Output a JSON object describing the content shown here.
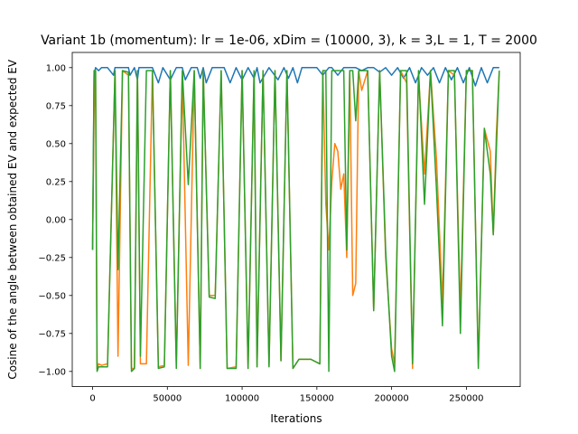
{
  "chart_data": {
    "type": "line",
    "title": "Variant 1b (momentum): lr = 1e-06, xDim = (10000, 3), k = 3,L = 1, T = 2000",
    "xlabel": "Iterations",
    "ylabel": "Cosine of the angle between obtained EV and expected EV",
    "xlim": [
      -13600,
      286000
    ],
    "ylim": [
      -1.1,
      1.1
    ],
    "x_ticks": [
      0,
      50000,
      100000,
      150000,
      200000,
      250000
    ],
    "x_tick_labels": [
      "0",
      "50000",
      "100000",
      "150000",
      "200000",
      "250000"
    ],
    "y_ticks": [
      -1.0,
      -0.75,
      -0.5,
      -0.25,
      0.0,
      0.25,
      0.5,
      0.75,
      1.0
    ],
    "y_tick_labels": [
      "−1.00",
      "−0.75",
      "−0.50",
      "−0.25",
      "0.00",
      "0.25",
      "0.50",
      "0.75",
      "1.00"
    ],
    "grid": false,
    "legend": "none",
    "series_colors": [
      "#1f77b4",
      "#ff7f0e",
      "#2ca02c"
    ],
    "series": [
      {
        "x": [
          0,
          1000,
          2000,
          4000,
          6000,
          8000,
          10000,
          14000,
          15000,
          17000,
          20000,
          24000,
          25000,
          28000,
          30000,
          31000,
          33000,
          35000,
          40000,
          44000,
          47000,
          52000,
          56000,
          60000,
          62000,
          66000,
          70000,
          72000,
          74000,
          76000,
          80000,
          88000,
          92000,
          96000,
          100000,
          104000,
          108000,
          110000,
          112000,
          118000,
          124000,
          128000,
          131000,
          134000,
          137000,
          140000,
          150000,
          154000,
          158000,
          160000,
          164000,
          168000,
          172000,
          176000,
          180000,
          184000,
          188000,
          192000,
          196000,
          200000,
          204000,
          208000,
          212000,
          216000,
          220000,
          224000,
          228000,
          232000,
          236000,
          240000,
          244000,
          248000,
          252000,
          256000,
          260000,
          264000,
          268000,
          272000
        ],
        "y": [
          -0.2,
          0.95,
          1.0,
          0.98,
          1.0,
          1.0,
          1.0,
          0.95,
          1.0,
          1.0,
          1.0,
          1.0,
          0.95,
          1.0,
          0.92,
          1.0,
          1.0,
          1.0,
          1.0,
          0.9,
          1.0,
          0.92,
          1.0,
          1.0,
          0.92,
          1.0,
          1.0,
          0.93,
          1.0,
          0.9,
          1.0,
          1.0,
          0.9,
          1.0,
          0.92,
          1.0,
          0.93,
          1.0,
          0.9,
          1.0,
          0.92,
          1.0,
          0.93,
          1.0,
          0.9,
          1.0,
          1.0,
          0.95,
          1.0,
          1.0,
          0.95,
          1.0,
          1.0,
          1.0,
          0.98,
          1.0,
          1.0,
          0.97,
          1.0,
          0.95,
          1.0,
          0.93,
          1.0,
          0.9,
          1.0,
          0.95,
          1.0,
          0.9,
          1.0,
          0.92,
          1.0,
          0.9,
          1.0,
          0.88,
          1.0,
          0.9,
          1.0,
          1.0
        ]
      },
      {
        "x": [
          0,
          1000,
          2000,
          3000,
          4000,
          6000,
          10000,
          15000,
          17000,
          20000,
          24000,
          26000,
          28000,
          30000,
          32000,
          36000,
          40000,
          44000,
          48000,
          52000,
          56000,
          60000,
          64000,
          68000,
          72000,
          74000,
          78000,
          82000,
          86000,
          90000,
          96000,
          100000,
          104000,
          108000,
          110000,
          114000,
          118000,
          122000,
          126000,
          130000,
          134000,
          138000,
          142000,
          146000,
          152000,
          154000,
          156000,
          158000,
          160000,
          162000,
          164000,
          166000,
          168000,
          170000,
          172000,
          174000,
          176000,
          178000,
          180000,
          184000,
          188000,
          192000,
          196000,
          200000,
          202000,
          206000,
          210000,
          214000,
          218000,
          222000,
          226000,
          230000,
          234000,
          238000,
          242000,
          246000,
          250000,
          254000,
          258000,
          262000,
          266000,
          268000,
          270000,
          272000
        ],
        "y": [
          -0.15,
          0.7,
          0.98,
          -0.98,
          -0.95,
          -0.96,
          -0.95,
          0.98,
          -0.9,
          0.98,
          0.95,
          -0.98,
          -0.98,
          0.98,
          -0.95,
          -0.95,
          0.98,
          -0.97,
          -0.96,
          0.98,
          -0.95,
          0.97,
          -0.96,
          0.98,
          -0.98,
          0.98,
          -0.5,
          -0.5,
          0.98,
          -0.98,
          -0.97,
          0.98,
          -0.98,
          0.97,
          -0.97,
          0.98,
          -0.96,
          0.98,
          -0.93,
          0.98,
          -0.98,
          -0.92,
          -0.92,
          -0.92,
          -0.95,
          0.98,
          0.1,
          -0.2,
          0.25,
          0.5,
          0.45,
          0.2,
          0.3,
          -0.25,
          0.98,
          -0.5,
          -0.42,
          0.98,
          0.85,
          0.98,
          -0.6,
          0.98,
          -0.25,
          -0.85,
          -0.95,
          0.98,
          0.9,
          -0.98,
          0.95,
          0.3,
          0.98,
          0.4,
          -0.55,
          0.98,
          0.95,
          -0.6,
          0.98,
          0.98,
          -0.95,
          0.6,
          0.45,
          -0.1,
          0.55,
          0.98
        ]
      },
      {
        "x": [
          0,
          1000,
          2000,
          3000,
          4000,
          6000,
          10000,
          15000,
          17000,
          20000,
          24000,
          26000,
          28000,
          30000,
          32000,
          36000,
          40000,
          44000,
          48000,
          52000,
          56000,
          60000,
          64000,
          68000,
          72000,
          74000,
          78000,
          82000,
          86000,
          90000,
          96000,
          100000,
          104000,
          108000,
          110000,
          114000,
          118000,
          122000,
          126000,
          130000,
          134000,
          138000,
          142000,
          146000,
          152000,
          154000,
          156000,
          158000,
          160000,
          162000,
          164000,
          166000,
          168000,
          170000,
          172000,
          174000,
          176000,
          178000,
          180000,
          184000,
          188000,
          192000,
          196000,
          200000,
          202000,
          206000,
          210000,
          214000,
          218000,
          222000,
          226000,
          230000,
          234000,
          238000,
          242000,
          246000,
          250000,
          254000,
          258000,
          262000,
          266000,
          268000,
          270000,
          272000
        ],
        "y": [
          -0.2,
          0.98,
          0.98,
          -1.0,
          -0.97,
          -0.97,
          -0.97,
          0.98,
          -0.33,
          0.98,
          0.97,
          -1.0,
          -0.98,
          0.98,
          -0.9,
          0.98,
          0.98,
          -0.98,
          -0.97,
          0.98,
          -0.98,
          0.98,
          0.23,
          0.98,
          -0.98,
          0.98,
          -0.51,
          -0.52,
          0.98,
          -0.98,
          -0.98,
          0.98,
          -0.98,
          0.98,
          -0.97,
          0.98,
          -0.97,
          0.98,
          -0.93,
          0.98,
          -0.98,
          -0.92,
          -0.92,
          -0.92,
          -0.95,
          0.98,
          0.98,
          -1.0,
          0.98,
          0.98,
          0.98,
          0.98,
          0.98,
          -0.2,
          0.98,
          0.98,
          0.65,
          0.98,
          0.98,
          0.98,
          -0.6,
          0.98,
          -0.2,
          -0.9,
          -1.0,
          0.98,
          0.98,
          -0.95,
          0.98,
          0.1,
          0.98,
          0.2,
          -0.7,
          0.98,
          0.98,
          -0.75,
          0.98,
          0.98,
          -0.98,
          0.6,
          0.3,
          -0.1,
          0.45,
          0.98
        ]
      }
    ]
  }
}
